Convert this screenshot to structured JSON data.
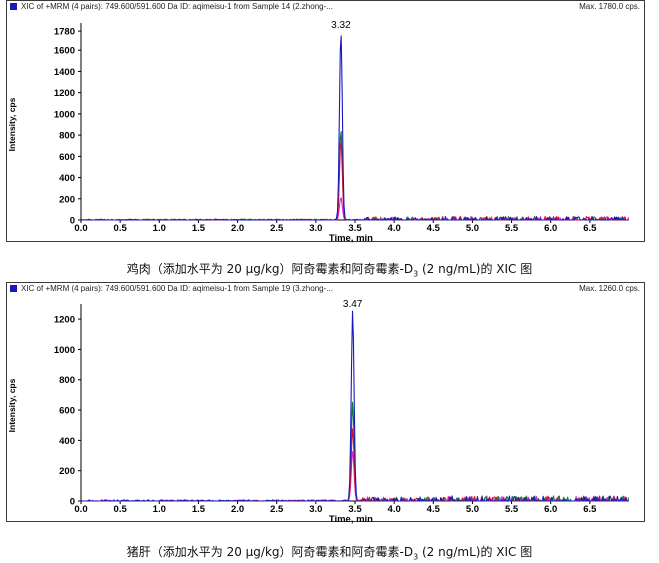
{
  "chart_data": [
    {
      "type": "line",
      "header_left": "XIC of +MRM (4 pairs): 749.600/591.600 Da ID: aqimeisu-1 from Sample 14 (2.zhong-...",
      "header_right": "Max. 1780.0 cps.",
      "ylabel": "Intensity, cps",
      "xlabel": "Time, min",
      "xlim": [
        0.0,
        7.0
      ],
      "ylim": [
        0,
        1800
      ],
      "x_ticks": [
        "0.0",
        "0.5",
        "1.0",
        "1.5",
        "2.0",
        "2.5",
        "3.0",
        "3.5",
        "4.0",
        "4.5",
        "5.0",
        "5.5",
        "6.0",
        "6.5"
      ],
      "y_ticks": [
        "0",
        "200",
        "400",
        "600",
        "800",
        "1000",
        "1200",
        "1400",
        "1600",
        "1780"
      ],
      "peak_label": "3.32",
      "peak": {
        "x": 3.32,
        "y": 1780,
        "width": 0.025
      },
      "series": [
        {
          "color": "#1818c0",
          "scale": 1.0
        },
        {
          "color": "#d4122a",
          "scale": 0.42
        },
        {
          "color": "#0b7a2e",
          "scale": 0.48
        },
        {
          "color": "#e020e0",
          "scale": 0.12
        }
      ],
      "noise_seed": 11
    },
    {
      "type": "line",
      "header_left": "XIC of +MRM (4 pairs): 749.600/591.600 Da ID: aqimeisu-1 from Sample 19 (3.zhong-...",
      "header_right": "Max. 1260.0 cps.",
      "ylabel": "Intensity, cps",
      "xlabel": "Time, min",
      "xlim": [
        0.0,
        7.0
      ],
      "ylim": [
        0,
        1260
      ],
      "x_ticks": [
        "0.0",
        "0.5",
        "1.0",
        "1.5",
        "2.0",
        "2.5",
        "3.0",
        "3.5",
        "4.0",
        "4.5",
        "5.0",
        "5.5",
        "6.0",
        "6.5"
      ],
      "y_ticks": [
        "0",
        "200",
        "400",
        "600",
        "800",
        "1000",
        "1200"
      ],
      "peak_label": "3.47",
      "peak": {
        "x": 3.47,
        "y": 1260,
        "width": 0.025
      },
      "series": [
        {
          "color": "#1818c0",
          "scale": 1.0
        },
        {
          "color": "#d4122a",
          "scale": 0.38
        },
        {
          "color": "#0b7a2e",
          "scale": 0.52
        },
        {
          "color": "#e020e0",
          "scale": 0.26
        }
      ],
      "noise_seed": 23
    }
  ],
  "captions": {
    "c1_main": "鸡肉（添加水平为 20 μg/kg）阿奇霉素和阿奇霉素-D",
    "c1_sub": "3",
    "c1_tail": " (2 ng/mL)的 XIC 图",
    "c2_main": "猪肝（添加水平为 20 μg/kg）阿奇霉素和阿奇霉素-D",
    "c2_sub": "3",
    "c2_tail": " (2 ng/mL)的 XIC 图"
  }
}
